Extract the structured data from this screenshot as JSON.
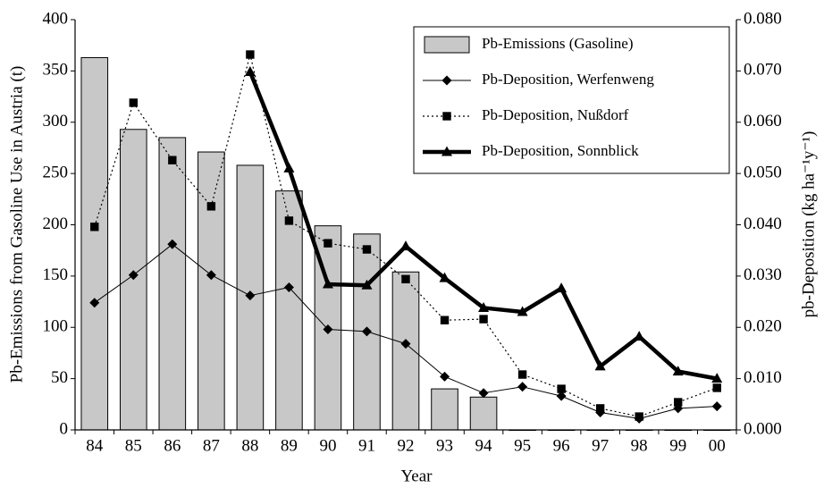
{
  "chart_data": {
    "type": "combo",
    "x_label": "Year",
    "y_label": "Pb-Emissions from Gasoline Use in Austria (t)",
    "y2_label": "pb-Deposition (kg ha⁻¹y⁻¹)",
    "categories": [
      "84",
      "85",
      "86",
      "87",
      "88",
      "89",
      "90",
      "91",
      "92",
      "93",
      "94",
      "95",
      "96",
      "97",
      "98",
      "99",
      "00"
    ],
    "ylim": [
      0,
      400
    ],
    "yticks": [
      0,
      50,
      100,
      150,
      200,
      250,
      300,
      350,
      400
    ],
    "y2lim": [
      0,
      0.08
    ],
    "y2ticks": [
      {
        "value": 0,
        "label": "0.000"
      },
      {
        "value": 0.01,
        "label": "0.010"
      },
      {
        "value": 0.02,
        "label": "0.020"
      },
      {
        "value": 0.03,
        "label": "0.030"
      },
      {
        "value": 0.04,
        "label": "0.040"
      },
      {
        "value": 0.05,
        "label": "0.050"
      },
      {
        "value": 0.06,
        "label": "0.060"
      },
      {
        "value": 0.07,
        "label": "0.070"
      },
      {
        "value": 0.08,
        "label": "0.080"
      }
    ],
    "legend": "top-right",
    "series": [
      {
        "name": "Pb-Emissions (Gasoline)",
        "type": "bar",
        "color": "#c8c8c8",
        "values": [
          363,
          293,
          285,
          271,
          258,
          233,
          199,
          191,
          154,
          40,
          32,
          0,
          0,
          0,
          0,
          0,
          0
        ]
      },
      {
        "name": "Pb-Deposition, Werfenweng",
        "type": "line",
        "axis": "y2",
        "color": "#000000",
        "marker": "diamond",
        "line": "solid-thin",
        "values": [
          0.0248,
          0.0302,
          0.0362,
          0.0302,
          0.0262,
          0.0278,
          0.0196,
          0.0192,
          0.0168,
          0.0104,
          0.0072,
          0.0084,
          0.0066,
          0.0034,
          0.0022,
          0.0042,
          0.0046
        ]
      },
      {
        "name": "Pb-Deposition, Nußdorf",
        "type": "line",
        "axis": "y2",
        "color": "#000000",
        "marker": "square",
        "line": "dotted",
        "values": [
          0.0396,
          0.0638,
          0.0526,
          0.0436,
          0.0732,
          0.0408,
          0.0364,
          0.0352,
          0.0294,
          0.0214,
          0.0216,
          0.0108,
          0.008,
          0.0042,
          0.0026,
          0.0054,
          0.0082
        ]
      },
      {
        "name": "Pb-Deposition, Sonnblick",
        "type": "line",
        "axis": "y2",
        "color": "#000000",
        "marker": "triangle",
        "line": "thick",
        "values": [
          null,
          null,
          null,
          null,
          0.0698,
          0.051,
          0.0284,
          0.0282,
          0.0358,
          0.0296,
          0.0238,
          0.023,
          0.0276,
          0.0124,
          0.0182,
          0.0114,
          0.01
        ]
      }
    ]
  }
}
